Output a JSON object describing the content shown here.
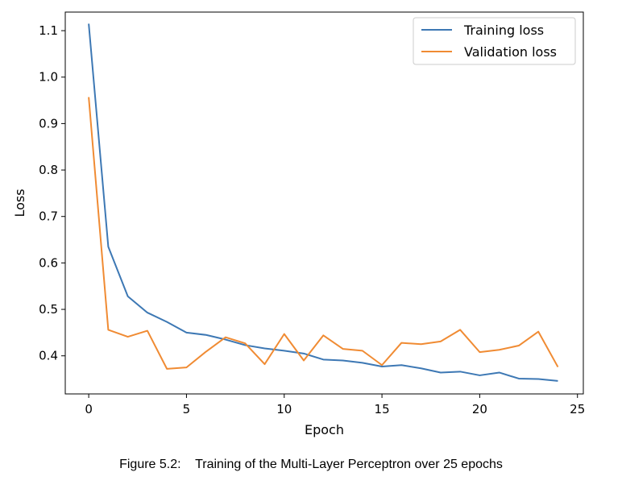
{
  "caption": "Figure 5.2:    Training of the Multi-Layer Perceptron over 25 epochs",
  "chart_data": {
    "type": "line",
    "title": "",
    "xlabel": "Epoch",
    "ylabel": "Loss",
    "xlim": [
      -1.2,
      25.3
    ],
    "ylim": [
      0.318,
      1.14
    ],
    "xticks": [
      0,
      5,
      10,
      15,
      20,
      25
    ],
    "yticks": [
      0.4,
      0.5,
      0.6,
      0.7,
      0.8,
      0.9,
      1.0,
      1.1
    ],
    "ytick_labels": [
      "0.4",
      "0.5",
      "0.6",
      "0.7",
      "0.8",
      "0.9",
      "1.0",
      "1.1"
    ],
    "grid": false,
    "legend_position": "top-right",
    "x": [
      0,
      1,
      2,
      3,
      4,
      5,
      6,
      7,
      8,
      9,
      10,
      11,
      12,
      13,
      14,
      15,
      16,
      17,
      18,
      19,
      20,
      21,
      22,
      23,
      24
    ],
    "series": [
      {
        "name": "Training loss",
        "color": "#3d78b4",
        "values": [
          1.115,
          0.635,
          0.528,
          0.493,
          0.473,
          0.45,
          0.445,
          0.435,
          0.423,
          0.416,
          0.411,
          0.405,
          0.392,
          0.39,
          0.385,
          0.377,
          0.38,
          0.373,
          0.364,
          0.366,
          0.358,
          0.364,
          0.351,
          0.35,
          0.346
        ]
      },
      {
        "name": "Validation loss",
        "color": "#f08b33",
        "values": [
          0.957,
          0.456,
          0.441,
          0.454,
          0.372,
          0.375,
          0.409,
          0.44,
          0.427,
          0.382,
          0.447,
          0.39,
          0.444,
          0.415,
          0.411,
          0.38,
          0.428,
          0.425,
          0.431,
          0.456,
          0.408,
          0.413,
          0.422,
          0.452,
          0.376
        ]
      }
    ]
  }
}
